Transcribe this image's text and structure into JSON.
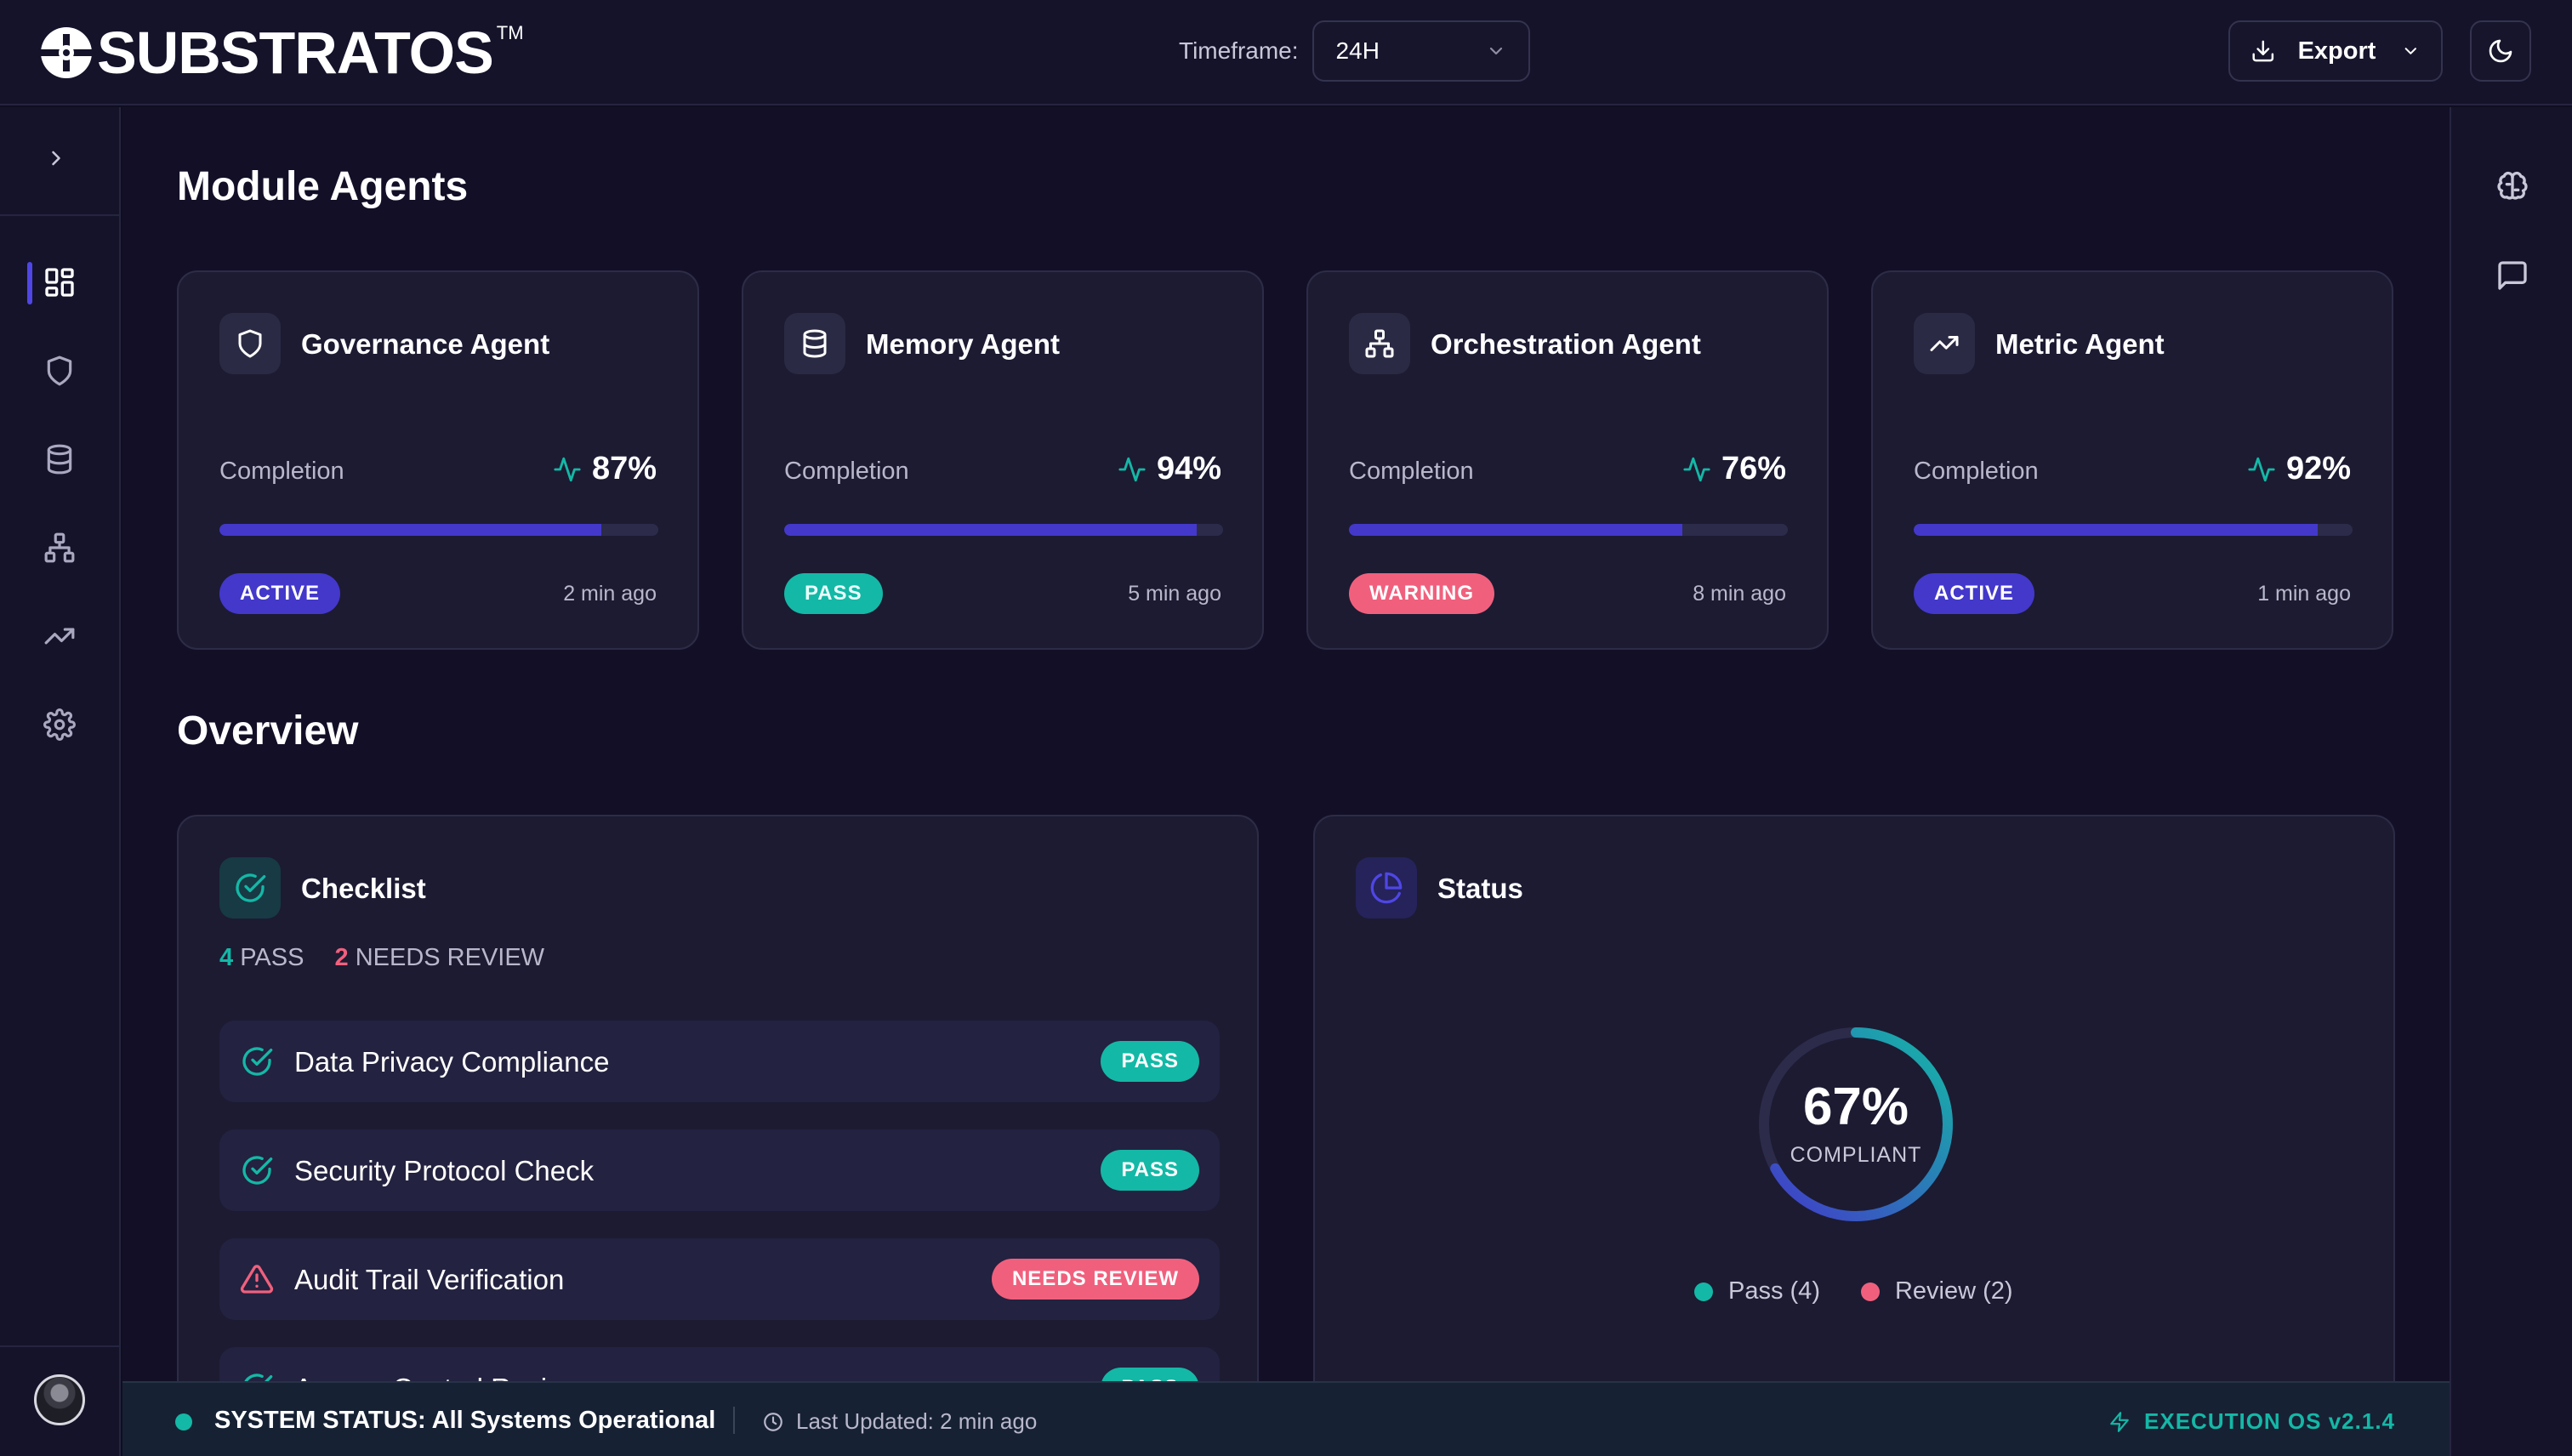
{
  "brand": {
    "name": "SUBSTRATOS",
    "tm": "TM"
  },
  "header": {
    "timeframe_label": "Timeframe:",
    "timeframe_value": "24H",
    "export_label": "Export"
  },
  "sidebar": {
    "items": [
      {
        "name": "dashboard",
        "icon": "grid-icon",
        "active": true
      },
      {
        "name": "governance",
        "icon": "shield-icon",
        "active": false
      },
      {
        "name": "memory",
        "icon": "database-icon",
        "active": false
      },
      {
        "name": "orchestration",
        "icon": "network-icon",
        "active": false
      },
      {
        "name": "metrics",
        "icon": "trending-up-icon",
        "active": false
      },
      {
        "name": "settings",
        "icon": "gear-icon",
        "active": false
      }
    ]
  },
  "rightrail": {
    "items": [
      {
        "icon": "brain-icon"
      },
      {
        "icon": "chat-icon"
      }
    ]
  },
  "module_agents": {
    "title": "Module Agents",
    "agents": [
      {
        "name": "Governance Agent",
        "icon": "shield-icon",
        "completion_label": "Completion",
        "completion": "87%",
        "completion_value": 87,
        "status": "ACTIVE",
        "status_kind": "active",
        "updated": "2 min ago"
      },
      {
        "name": "Memory Agent",
        "icon": "database-icon",
        "completion_label": "Completion",
        "completion": "94%",
        "completion_value": 94,
        "status": "PASS",
        "status_kind": "pass",
        "updated": "5 min ago"
      },
      {
        "name": "Orchestration Agent",
        "icon": "network-icon",
        "completion_label": "Completion",
        "completion": "76%",
        "completion_value": 76,
        "status": "WARNING",
        "status_kind": "warning",
        "updated": "8 min ago"
      },
      {
        "name": "Metric Agent",
        "icon": "trending-up-icon",
        "completion_label": "Completion",
        "completion": "92%",
        "completion_value": 92,
        "status": "ACTIVE",
        "status_kind": "active",
        "updated": "1 min ago"
      }
    ]
  },
  "overview": {
    "title": "Overview",
    "checklist": {
      "title": "Checklist",
      "pass_count": "4",
      "pass_label": "PASS",
      "review_count": "2",
      "review_label": "NEEDS REVIEW",
      "items": [
        {
          "name": "Data Privacy Compliance",
          "status": "PASS",
          "kind": "pass"
        },
        {
          "name": "Security Protocol Check",
          "status": "PASS",
          "kind": "pass"
        },
        {
          "name": "Audit Trail Verification",
          "status": "NEEDS REVIEW",
          "kind": "review"
        },
        {
          "name": "Access Control Review",
          "status": "PASS",
          "kind": "pass"
        }
      ]
    },
    "status": {
      "title": "Status",
      "percent": "67%",
      "percent_value": 67,
      "label": "COMPLIANT",
      "legend_pass": "Pass (4)",
      "legend_review": "Review (2)"
    }
  },
  "statusbar": {
    "system_status": "SYSTEM STATUS: All Systems Operational",
    "last_updated": "Last Updated: 2 min ago",
    "version": "EXECUTION OS v2.1.4"
  },
  "colors": {
    "accent": "#4338ca",
    "pass": "#14b8a6",
    "review": "#f0607d",
    "background": "#120f27",
    "card": "#1c1b32"
  }
}
